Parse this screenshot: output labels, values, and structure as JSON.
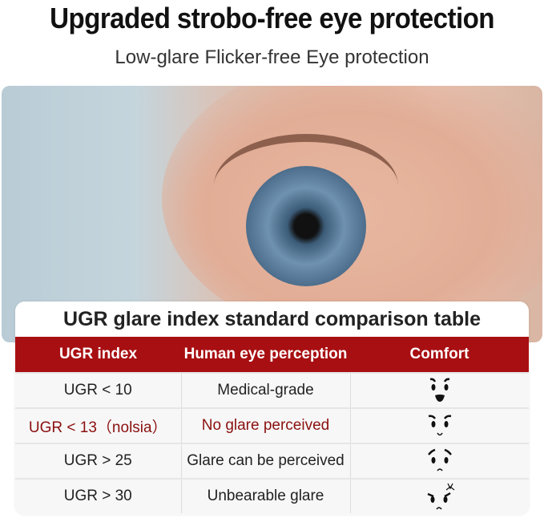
{
  "title": "Upgraded strobo-free eye protection",
  "subtitle": "Low-glare Flicker-free Eye protection",
  "table": {
    "title": "UGR glare index standard comparison table",
    "headers": [
      "UGR index",
      "Human eye perception",
      "Comfort"
    ],
    "rows": [
      {
        "index": "UGR < 10",
        "perception": "Medical-grade",
        "comfort_icon": "happy-face-icon"
      },
      {
        "index": "UGR < 13（nolsia）",
        "perception": "No glare perceived",
        "comfort_icon": "smile-face-icon"
      },
      {
        "index": "UGR > 25",
        "perception": "Glare can be perceived",
        "comfort_icon": "worried-face-icon"
      },
      {
        "index": "UGR > 30",
        "perception": "Unbearable glare",
        "comfort_icon": "angry-face-icon"
      }
    ],
    "header_color": "#a80f12",
    "highlight_color": "#8b1010"
  }
}
